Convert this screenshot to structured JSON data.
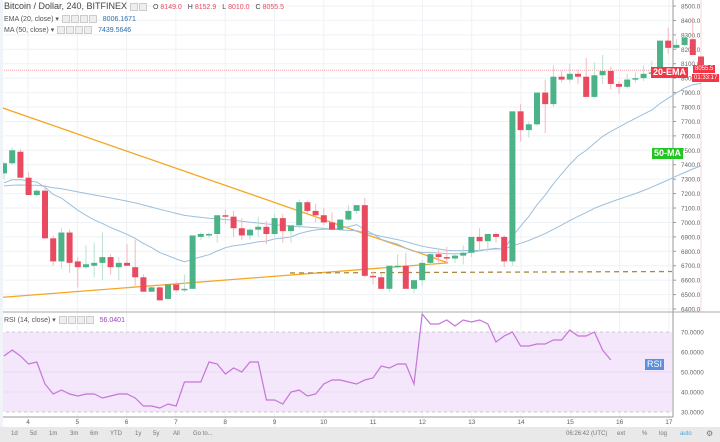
{
  "header": {
    "title": "Bitcoin / Dollar, 240, BITFINEX",
    "ohlc": {
      "O": "8149.0",
      "H": "8152.9",
      "L": "8010.0",
      "C": "8055.5"
    },
    "indicators": [
      {
        "label": "EMA (20, close)",
        "value": "8006.1671"
      },
      {
        "label": "MA (50, close)",
        "value": "7439.5646"
      }
    ]
  },
  "rsi_legend": {
    "label": "RSI (14, close)",
    "value": "56.0401"
  },
  "price_axis": [
    "8500.0",
    "8400.0",
    "8300.0",
    "8200.0",
    "8100.0",
    "8000.0",
    "7900.0",
    "7800.0",
    "7700.0",
    "7600.0",
    "7500.0",
    "7400.0",
    "7300.0",
    "7200.0",
    "7100.0",
    "7000.0",
    "6900.0",
    "6800.0",
    "6700.0",
    "6600.0",
    "6500.0",
    "6400.0"
  ],
  "rsi_axis": [
    "70.0000",
    "60.0000",
    "50.0000",
    "40.0000",
    "30.0000"
  ],
  "price_label": {
    "price": "8055.5",
    "countdown": "01:33:17"
  },
  "annotations": {
    "ema_tag": "20-EMA",
    "ma_tag": "50-MA",
    "rsi_tag": "RSI"
  },
  "colors": {
    "up": "#4cb287",
    "down": "#e84a5f",
    "ema": "#9dbfdc",
    "ma": "#9dbfdc",
    "trend": "#f5a623",
    "support": "#a98a45",
    "rsi": "#c576d8",
    "rsi_band": "#f4e6fb",
    "ema_tag": "#f23645",
    "ma_tag": "#22c522",
    "rsi_tag": "#5b8fe0"
  },
  "bottom_bar": {
    "ranges": [
      "1d",
      "5d",
      "1m",
      "3m",
      "6m",
      "YTD",
      "1y",
      "5y",
      "All",
      "Go to..."
    ],
    "time": "06:26:42 (UTC)",
    "options": [
      "ext",
      "%",
      "log",
      "auto"
    ]
  },
  "chart_data": {
    "type": "candlestick",
    "title": "Bitcoin / Dollar, 240, BITFINEX",
    "x_ticks": [
      "4",
      "5",
      "6",
      "7",
      "8",
      "9",
      "10",
      "11",
      "12",
      "13",
      "14",
      "15",
      "16",
      "17"
    ],
    "ylim": [
      6400,
      8500
    ],
    "candles": [
      [
        7340,
        7420,
        7300,
        7410
      ],
      [
        7410,
        7520,
        7400,
        7500
      ],
      [
        7490,
        7510,
        7340,
        7310
      ],
      [
        7310,
        7350,
        7200,
        7190
      ],
      [
        7190,
        7230,
        7180,
        7220
      ],
      [
        7220,
        7260,
        6900,
        6890
      ],
      [
        6890,
        6910,
        6700,
        6730
      ],
      [
        6730,
        6960,
        6680,
        6930
      ],
      [
        6930,
        6950,
        6650,
        6720
      ],
      [
        6730,
        6760,
        6550,
        6690
      ],
      [
        6690,
        6840,
        6680,
        6710
      ],
      [
        6700,
        6860,
        6620,
        6720
      ],
      [
        6720,
        6930,
        6600,
        6760
      ],
      [
        6760,
        6780,
        6640,
        6690
      ],
      [
        6690,
        6760,
        6600,
        6720
      ],
      [
        6720,
        6850,
        6700,
        6700
      ],
      [
        6690,
        6880,
        6560,
        6620
      ],
      [
        6620,
        6640,
        6560,
        6520
      ],
      [
        6520,
        6560,
        6520,
        6550
      ],
      [
        6550,
        6570,
        6520,
        6460
      ],
      [
        6470,
        6500,
        6460,
        6570
      ],
      [
        6570,
        6590,
        6520,
        6530
      ],
      [
        6530,
        6640,
        6520,
        6540
      ],
      [
        6540,
        6900,
        6540,
        6910
      ],
      [
        6900,
        6930,
        6880,
        6920
      ],
      [
        6920,
        6930,
        6890,
        6920
      ],
      [
        6920,
        7010,
        6860,
        7050
      ],
      [
        7050,
        7090,
        6990,
        7040
      ],
      [
        7040,
        7080,
        6900,
        6960
      ],
      [
        6960,
        7030,
        6880,
        6910
      ],
      [
        6910,
        6960,
        6880,
        6950
      ],
      [
        6950,
        7040,
        6900,
        6970
      ],
      [
        6970,
        7010,
        6850,
        6920
      ],
      [
        6920,
        7060,
        6900,
        7030
      ],
      [
        7030,
        7060,
        6860,
        6940
      ],
      [
        6940,
        6960,
        6860,
        6980
      ],
      [
        6980,
        7160,
        6960,
        7140
      ],
      [
        7140,
        7150,
        7060,
        7080
      ],
      [
        7080,
        7130,
        7000,
        7050
      ],
      [
        7050,
        7100,
        6980,
        7000
      ],
      [
        7000,
        7070,
        6960,
        6950
      ],
      [
        6950,
        7000,
        6940,
        7020
      ],
      [
        7020,
        7120,
        7010,
        7080
      ],
      [
        7080,
        7110,
        7060,
        7120
      ],
      [
        7120,
        7170,
        6620,
        6630
      ],
      [
        6630,
        6660,
        6570,
        6620
      ],
      [
        6620,
        6650,
        6540,
        6540
      ],
      [
        6540,
        6560,
        6520,
        6700
      ],
      [
        6700,
        6780,
        6680,
        6700
      ],
      [
        6700,
        6790,
        6560,
        6540
      ],
      [
        6540,
        6580,
        6510,
        6600
      ],
      [
        6600,
        6740,
        6560,
        6720
      ],
      [
        6720,
        6790,
        6700,
        6780
      ],
      [
        6780,
        6810,
        6720,
        6760
      ],
      [
        6760,
        6830,
        6720,
        6750
      ],
      [
        6750,
        6780,
        6720,
        6770
      ],
      [
        6770,
        6840,
        6710,
        6790
      ],
      [
        6790,
        6820,
        6760,
        6900
      ],
      [
        6900,
        6960,
        6800,
        6870
      ],
      [
        6870,
        6900,
        6800,
        6920
      ],
      [
        6920,
        6930,
        6860,
        6900
      ],
      [
        6900,
        6910,
        6690,
        6730
      ],
      [
        6730,
        7160,
        6700,
        7770
      ],
      [
        7770,
        7820,
        7560,
        7640
      ],
      [
        7640,
        7700,
        7590,
        7680
      ],
      [
        7680,
        7860,
        7670,
        7900
      ],
      [
        7900,
        7990,
        7620,
        7820
      ],
      [
        7820,
        8090,
        7800,
        8010
      ],
      [
        8010,
        8050,
        7970,
        7990
      ],
      [
        7990,
        8100,
        7970,
        8030
      ],
      [
        8030,
        8060,
        7960,
        8010
      ],
      [
        8010,
        8140,
        7890,
        7870
      ],
      [
        7870,
        8110,
        7860,
        8020
      ],
      [
        8020,
        8160,
        7960,
        8050
      ],
      [
        8050,
        8080,
        7920,
        7960
      ],
      [
        7960,
        7980,
        7890,
        7940
      ],
      [
        7940,
        8030,
        7930,
        7990
      ],
      [
        7990,
        8040,
        7970,
        8000
      ],
      [
        8000,
        8090,
        7980,
        8030
      ],
      [
        8030,
        8120,
        8010,
        8040
      ],
      [
        8040,
        8070,
        8000,
        8260
      ],
      [
        8260,
        8350,
        8170,
        8210
      ],
      [
        8210,
        8270,
        8200,
        8230
      ],
      [
        8230,
        8300,
        8220,
        8280
      ],
      [
        8270,
        8420,
        8160,
        8160
      ],
      [
        8150,
        8150,
        8010,
        8055
      ]
    ],
    "series": [
      {
        "name": "EMA (20, close)",
        "last": 8006.1671
      },
      {
        "name": "MA (50, close)",
        "last": 7439.5646
      },
      {
        "name": "RSI (14, close)",
        "last": 56.0401
      }
    ],
    "rsi_values": [
      58,
      61,
      58,
      54,
      55,
      44,
      39,
      41,
      39,
      38,
      39,
      39,
      37,
      38,
      39,
      39,
      37,
      33,
      33,
      32,
      34,
      33,
      45,
      45,
      45,
      55,
      54,
      49,
      52,
      50,
      55,
      55,
      36,
      36,
      34,
      40,
      41,
      38,
      39,
      44,
      46,
      46,
      45,
      44,
      46,
      47,
      53,
      52,
      54,
      54,
      44,
      79,
      74,
      74,
      76,
      73,
      76,
      75,
      76,
      74,
      65,
      68,
      70,
      63,
      63,
      64,
      64,
      66,
      66,
      71,
      68,
      68,
      70,
      61,
      56
    ],
    "trendlines": [
      {
        "name": "descending resistance",
        "from": [
          0,
          7800
        ],
        "to": [
          11.8,
          6720
        ]
      },
      {
        "name": "ascending support",
        "from": [
          0,
          6480
        ],
        "to": [
          11.8,
          6720
        ]
      },
      {
        "name": "horizontal support (dashed)",
        "price": 6650
      }
    ]
  }
}
